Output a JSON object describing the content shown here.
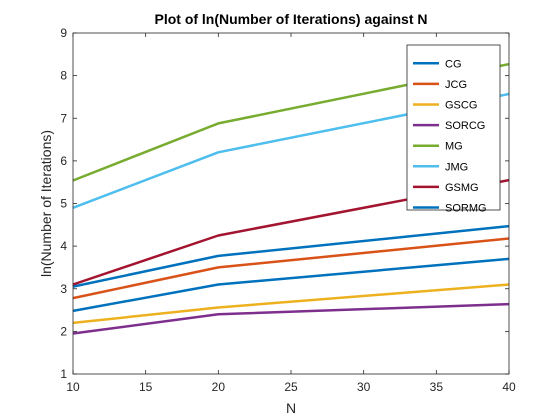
{
  "chart_data": {
    "type": "line",
    "title": "Plot of ln(Number of Iterations) against N",
    "xlabel": "N",
    "ylabel": "ln(Number of Iterations)",
    "xlim": [
      10,
      40
    ],
    "ylim": [
      1,
      9
    ],
    "xticks": [
      10,
      15,
      20,
      25,
      30,
      35,
      40
    ],
    "yticks": [
      1,
      2,
      3,
      4,
      5,
      6,
      7,
      8,
      9
    ],
    "x": [
      10,
      20,
      40
    ],
    "grid": false,
    "legend_position": "top-right",
    "series": [
      {
        "name": "CG",
        "color": "#0072BD",
        "values": [
          3.05,
          3.77,
          4.47
        ]
      },
      {
        "name": "JCG",
        "color": "#D95319",
        "values": [
          2.78,
          3.5,
          4.18
        ]
      },
      {
        "name": "GSCG",
        "color": "#EDB120",
        "values": [
          2.2,
          2.56,
          3.1
        ]
      },
      {
        "name": "SORCG",
        "color": "#7E2F8E",
        "values": [
          1.95,
          2.4,
          2.64
        ]
      },
      {
        "name": "MG",
        "color": "#77AC30",
        "values": [
          5.54,
          6.88,
          8.27
        ]
      },
      {
        "name": "JMG",
        "color": "#4DBEEE",
        "values": [
          4.9,
          6.2,
          7.57
        ]
      },
      {
        "name": "GSMG",
        "color": "#A2142F",
        "values": [
          3.1,
          4.25,
          5.55
        ]
      },
      {
        "name": "SORMG",
        "color": "#0072BD",
        "values": [
          2.48,
          3.1,
          3.7
        ]
      }
    ]
  }
}
